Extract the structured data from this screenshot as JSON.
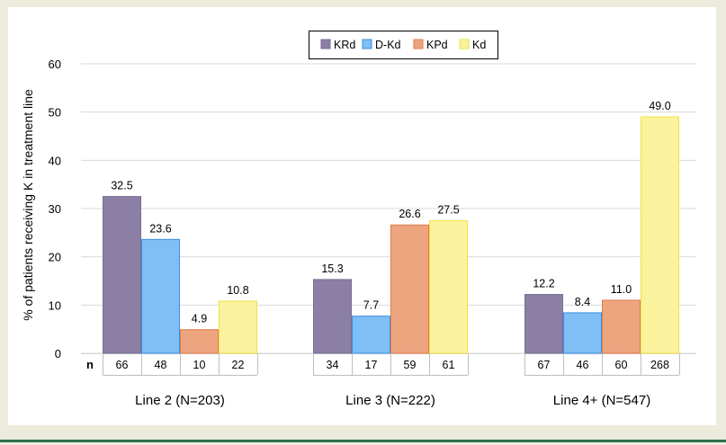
{
  "chart_data": {
    "type": "bar",
    "ylabel": "% of patients receiving K in treatment line",
    "ylim": [
      0,
      60
    ],
    "yticks": [
      0,
      10,
      20,
      30,
      40,
      50,
      60
    ],
    "grid": "horizontal",
    "legend_position": "top-center",
    "categories": [
      "Line 2 (N=203)",
      "Line 3 (N=222)",
      "Line 4+ (N=547)"
    ],
    "series": [
      {
        "name": "KRd",
        "color": "#8c7fa6",
        "values": [
          32.5,
          15.3,
          12.2
        ],
        "labels": [
          "32.5",
          "15.3",
          "12.2"
        ],
        "n": [
          "66",
          "34",
          "67"
        ]
      },
      {
        "name": "D-Kd",
        "color": "#7fbff5",
        "values": [
          23.6,
          7.7,
          8.4
        ],
        "labels": [
          "23.6",
          "7.7",
          "8.4"
        ],
        "n": [
          "48",
          "17",
          "46"
        ]
      },
      {
        "name": "KPd",
        "color": "#eda57f",
        "values": [
          4.9,
          26.6,
          11.0
        ],
        "labels": [
          "4.9",
          "26.6",
          "11.0"
        ],
        "n": [
          "10",
          "59",
          "60"
        ]
      },
      {
        "name": "Kd",
        "color": "#fbf29d",
        "values": [
          10.8,
          27.5,
          49.0
        ],
        "labels": [
          "10.8",
          "27.5",
          "49.0"
        ],
        "n": [
          "22",
          "61",
          "268"
        ]
      }
    ],
    "n_row_label": "n"
  },
  "colors": {
    "background": "#ecebdc",
    "panel": "#ffffff",
    "grid": "#d9d9d9",
    "accent_rule": "#2e6e47",
    "krd_border": "#7a6d94",
    "dkd_border": "#3a8fe0",
    "kpd_border": "#e07b4a",
    "kd_border": "#f2e04a"
  }
}
